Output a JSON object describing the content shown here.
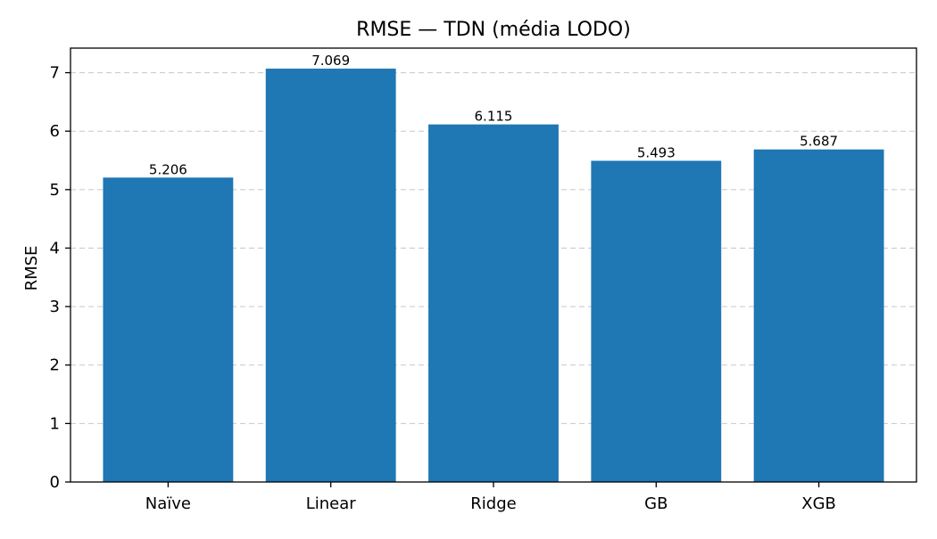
{
  "chart_data": {
    "type": "bar",
    "title": "RMSE — TDN (média LODO)",
    "xlabel": "",
    "ylabel": "RMSE",
    "categories": [
      "Naïve",
      "Linear",
      "Ridge",
      "GB",
      "XGB"
    ],
    "values": [
      5.206,
      7.069,
      6.115,
      5.493,
      5.687
    ],
    "data_labels": [
      "5.206",
      "7.069",
      "6.115",
      "5.493",
      "5.687"
    ],
    "ylim": [
      0,
      7.42
    ],
    "yticks": [
      0,
      1,
      2,
      3,
      4,
      5,
      6,
      7
    ],
    "grid": "y-dashed",
    "bar_color": "#1f77b4"
  }
}
